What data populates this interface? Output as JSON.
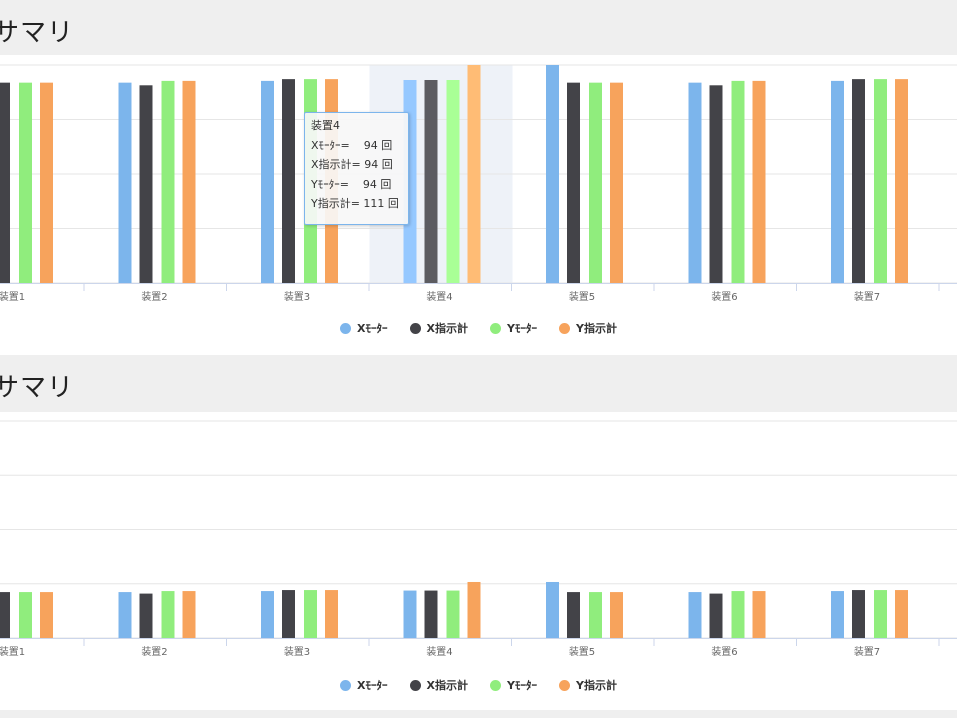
{
  "sections": [
    {
      "title": "ムサマリ"
    },
    {
      "title": "ムサマリ"
    }
  ],
  "legend": [
    {
      "label": "Xﾓｰﾀｰ",
      "color": "#7cb5ec"
    },
    {
      "label": "X指示計",
      "color": "#434348"
    },
    {
      "label": "Yﾓｰﾀｰ",
      "color": "#90ed7d"
    },
    {
      "label": "Y指示計",
      "color": "#f7a35c"
    }
  ],
  "tooltip": {
    "title": "装置4",
    "lines": [
      "Xﾓｰﾀｰ=    94 回",
      "X指示計= 94 回",
      "Yﾓｰﾀｰ=    94 回",
      "Y指示計= 111 回"
    ]
  },
  "chart_data": [
    {
      "type": "bar",
      "title": "",
      "categories": [
        "装置1",
        "装置2",
        "装置3",
        "装置4",
        "装置5",
        "装置6",
        "装置7"
      ],
      "series": [
        {
          "name": "Xﾓｰﾀｰ",
          "values": [
            91,
            91,
            93,
            94,
            111,
            91,
            93
          ]
        },
        {
          "name": "X指示計",
          "values": [
            91,
            88,
            95,
            94,
            91,
            88,
            95
          ]
        },
        {
          "name": "Yﾓｰﾀｰ",
          "values": [
            91,
            93,
            95,
            94,
            91,
            93,
            95
          ]
        },
        {
          "name": "Y指示計",
          "values": [
            91,
            93,
            95,
            111,
            91,
            93,
            95
          ]
        }
      ],
      "ylim": [
        -136,
        111
      ],
      "highlight": "装置4",
      "grid": true,
      "legend": "bottom"
    },
    {
      "type": "bar",
      "title": "",
      "categories": [
        "装置1",
        "装置2",
        "装置3",
        "装置4",
        "装置5",
        "装置6",
        "装置7"
      ],
      "series": [
        {
          "name": "Xﾓｰﾀｰ",
          "values": [
            91,
            91,
            93,
            94,
            111,
            91,
            93
          ]
        },
        {
          "name": "X指示計",
          "values": [
            91,
            88,
            95,
            94,
            91,
            88,
            95
          ]
        },
        {
          "name": "Yﾓｰﾀｰ",
          "values": [
            91,
            93,
            95,
            94,
            91,
            93,
            95
          ]
        },
        {
          "name": "Y指示計",
          "values": [
            91,
            93,
            95,
            111,
            91,
            93,
            95
          ]
        }
      ],
      "ylim": [
        0,
        430
      ],
      "grid": true,
      "legend": "bottom"
    }
  ]
}
